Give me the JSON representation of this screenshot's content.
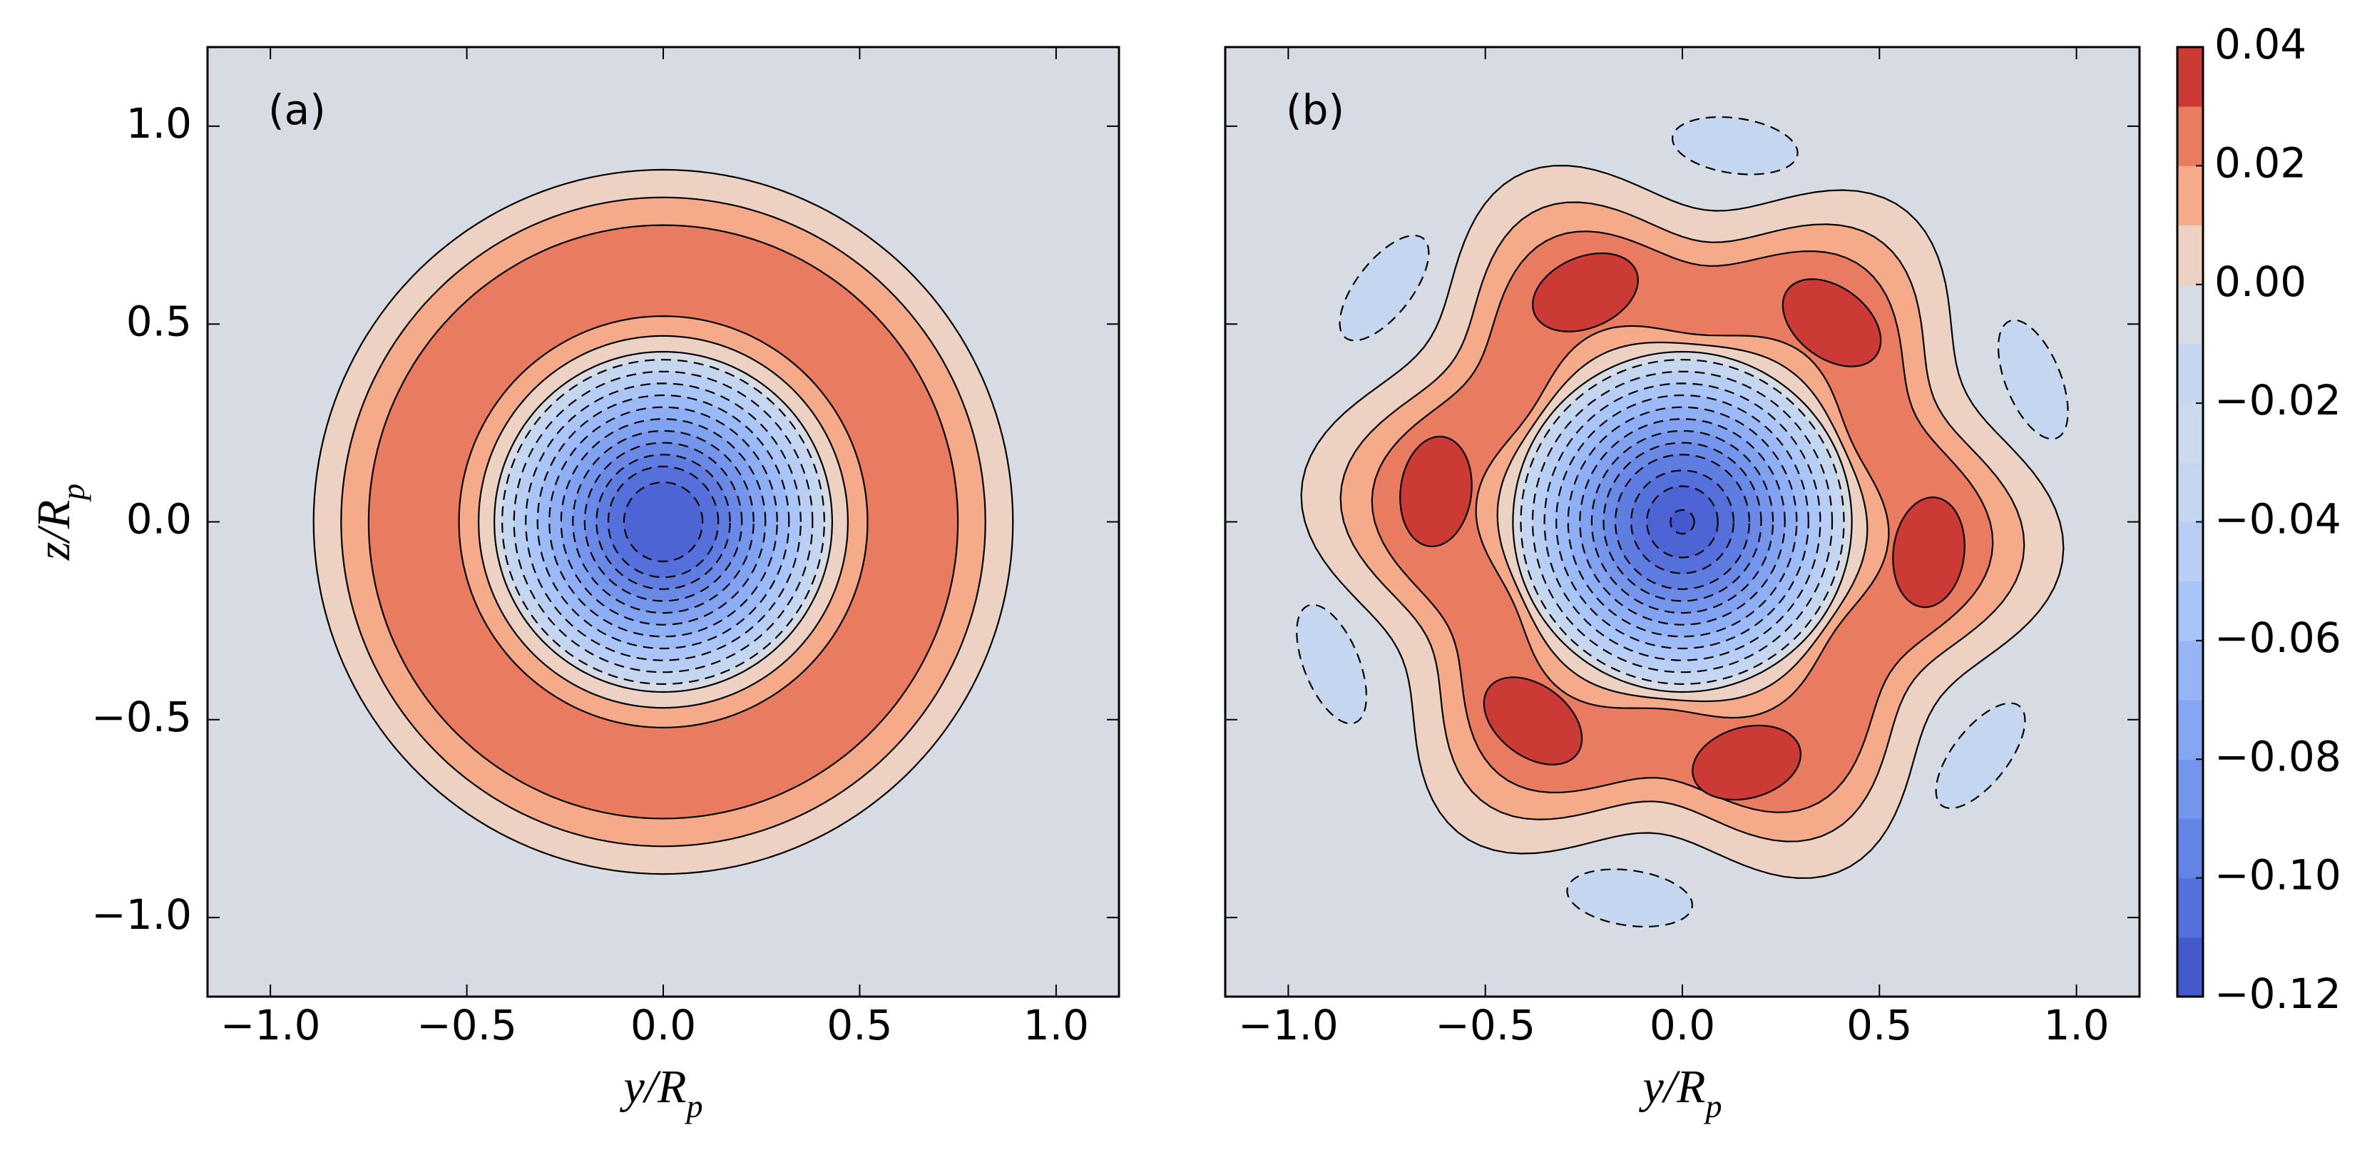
{
  "chart_data": [
    {
      "type": "contour",
      "panel_label": "(a)",
      "xlabel": "y/R_p",
      "ylabel": "z/R_p",
      "xlim": [
        -1.16,
        1.16
      ],
      "ylim": [
        -1.2,
        1.2
      ],
      "xticks": [
        {
          "value": -1.0,
          "label": "−1.0"
        },
        {
          "value": -0.5,
          "label": "−0.5"
        },
        {
          "value": 0.0,
          "label": "0.0"
        },
        {
          "value": 0.5,
          "label": "0.5"
        },
        {
          "value": 1.0,
          "label": "1.0"
        }
      ],
      "yticks": [
        {
          "value": -1.0,
          "label": "−1.0"
        },
        {
          "value": -0.5,
          "label": "−0.5"
        },
        {
          "value": 0.0,
          "label": "0.0"
        },
        {
          "value": 0.5,
          "label": "0.5"
        },
        {
          "value": 1.0,
          "label": "1.0"
        }
      ],
      "background": "#d7dbe3",
      "contours": [
        {
          "level": 0.0,
          "r": 0.89,
          "amp": 0,
          "phase": 0,
          "fill": "#edd1c2"
        },
        {
          "level": 0.01,
          "r": 0.82,
          "amp": 0,
          "phase": 0,
          "fill": "#f5aa89"
        },
        {
          "level": 0.02,
          "r": 0.75,
          "amp": 0,
          "phase": 0,
          "fill": "#e97b61"
        },
        {
          "level": 0.02,
          "r": 0.52,
          "amp": 0,
          "phase": 0,
          "fill": "#f5aa89"
        },
        {
          "level": 0.01,
          "r": 0.47,
          "amp": 0,
          "phase": 0,
          "fill": "#edd1c2"
        },
        {
          "level": 0.0,
          "r": 0.43,
          "amp": 0,
          "phase": 0,
          "fill": "#d7dbe3"
        },
        {
          "level": -0.01,
          "r": 0.41,
          "amp": 0,
          "phase": 0,
          "fill": "#c5d6f0"
        },
        {
          "level": -0.02,
          "r": 0.38,
          "amp": 0,
          "phase": 0,
          "fill": "#b8cef5"
        },
        {
          "level": -0.03,
          "r": 0.35,
          "amp": 0,
          "phase": 0,
          "fill": "#aac5f7"
        },
        {
          "level": -0.04,
          "r": 0.32,
          "amp": 0,
          "phase": 0,
          "fill": "#9cbaf7"
        },
        {
          "level": -0.05,
          "r": 0.29,
          "amp": 0,
          "phase": 0,
          "fill": "#8eaef5"
        },
        {
          "level": -0.06,
          "r": 0.26,
          "amp": 0,
          "phase": 0,
          "fill": "#81a2f1"
        },
        {
          "level": -0.07,
          "r": 0.23,
          "amp": 0,
          "phase": 0,
          "fill": "#7595ec"
        },
        {
          "level": -0.08,
          "r": 0.2,
          "amp": 0,
          "phase": 0,
          "fill": "#6a88e6"
        },
        {
          "level": -0.09,
          "r": 0.17,
          "amp": 0,
          "phase": 0,
          "fill": "#5f7ce0"
        },
        {
          "level": -0.1,
          "r": 0.14,
          "amp": 0,
          "phase": 0,
          "fill": "#5570da"
        },
        {
          "level": -0.11,
          "r": 0.1,
          "amp": 0,
          "phase": 0,
          "fill": "#4c64d4"
        }
      ],
      "blobs": []
    },
    {
      "type": "contour",
      "panel_label": "(b)",
      "xlabel": "y/R_p",
      "xlim": [
        -1.16,
        1.16
      ],
      "ylim": [
        -1.2,
        1.2
      ],
      "xticks": [
        {
          "value": -1.0,
          "label": "−1.0"
        },
        {
          "value": -0.5,
          "label": "−0.5"
        },
        {
          "value": 0.0,
          "label": "0.0"
        },
        {
          "value": 0.5,
          "label": "0.5"
        },
        {
          "value": 1.0,
          "label": "1.0"
        }
      ],
      "yticks": [
        -1.0,
        -0.5,
        0.0,
        0.5,
        1.0
      ],
      "background": "#d7dbe3",
      "contours": [
        {
          "level": 0.0,
          "r": 0.88,
          "amp": 0.09,
          "phase": -5,
          "fill": "#edd1c2"
        },
        {
          "level": 0.01,
          "r": 0.79,
          "amp": 0.08,
          "phase": -5,
          "fill": "#f5aa89"
        },
        {
          "level": 0.02,
          "r": 0.72,
          "amp": 0.07,
          "phase": -5,
          "fill": "#e97b61"
        },
        {
          "level": 0.02,
          "r": 0.5,
          "amp": 0.025,
          "phase": -5,
          "fill": "#f5aa89"
        },
        {
          "level": 0.01,
          "r": 0.46,
          "amp": 0.01,
          "phase": -5,
          "fill": "#edd1c2"
        },
        {
          "level": 0.0,
          "r": 0.43,
          "amp": 0,
          "phase": 0,
          "fill": "#d7dbe3"
        },
        {
          "level": -0.01,
          "r": 0.41,
          "amp": 0,
          "phase": 0,
          "fill": "#c5d6f0"
        },
        {
          "level": -0.02,
          "r": 0.38,
          "amp": 0,
          "phase": 0,
          "fill": "#b8cef5"
        },
        {
          "level": -0.03,
          "r": 0.35,
          "amp": 0,
          "phase": 0,
          "fill": "#aac5f7"
        },
        {
          "level": -0.04,
          "r": 0.32,
          "amp": 0,
          "phase": 0,
          "fill": "#9cbaf7"
        },
        {
          "level": -0.05,
          "r": 0.29,
          "amp": 0,
          "phase": 0,
          "fill": "#8eaef5"
        },
        {
          "level": -0.06,
          "r": 0.26,
          "amp": 0,
          "phase": 0,
          "fill": "#81a2f1"
        },
        {
          "level": -0.07,
          "r": 0.23,
          "amp": 0,
          "phase": 0,
          "fill": "#7595ec"
        },
        {
          "level": -0.08,
          "r": 0.2,
          "amp": 0,
          "phase": 0,
          "fill": "#6a88e6"
        },
        {
          "level": -0.09,
          "r": 0.17,
          "amp": 0,
          "phase": 0,
          "fill": "#5f7ce0"
        },
        {
          "level": -0.1,
          "r": 0.13,
          "amp": 0,
          "phase": 0,
          "fill": "#5570da"
        },
        {
          "level": -0.11,
          "r": 0.09,
          "amp": 0,
          "phase": 0,
          "fill": "#4c64d4"
        },
        {
          "level": -0.12,
          "r": 0.03,
          "amp": 0,
          "phase": 0,
          "fill": "#4459cc"
        }
      ],
      "blobs": [
        {
          "level": 0.03,
          "r": 0.63,
          "angle": -7,
          "w": 0.14,
          "h": 0.09,
          "fill": "#cc3a35"
        },
        {
          "level": 0.03,
          "r": 0.63,
          "angle": 53,
          "w": 0.14,
          "h": 0.09,
          "fill": "#cc3a35"
        },
        {
          "level": 0.03,
          "r": 0.63,
          "angle": 113,
          "w": 0.14,
          "h": 0.09,
          "fill": "#cc3a35"
        },
        {
          "level": 0.03,
          "r": 0.63,
          "angle": 173,
          "w": 0.14,
          "h": 0.09,
          "fill": "#cc3a35"
        },
        {
          "level": 0.03,
          "r": 0.63,
          "angle": 233,
          "w": 0.14,
          "h": 0.09,
          "fill": "#cc3a35"
        },
        {
          "level": 0.03,
          "r": 0.63,
          "angle": 285,
          "w": 0.14,
          "h": 0.09,
          "fill": "#cc3a35"
        },
        {
          "level": -0.01,
          "r": 0.96,
          "angle": 22,
          "w": 0.16,
          "h": 0.07,
          "fill": "#c5d6f0"
        },
        {
          "level": -0.01,
          "r": 0.96,
          "angle": 82,
          "w": 0.16,
          "h": 0.07,
          "fill": "#c5d6f0"
        },
        {
          "level": -0.01,
          "r": 0.96,
          "angle": 142,
          "w": 0.16,
          "h": 0.07,
          "fill": "#c5d6f0"
        },
        {
          "level": -0.01,
          "r": 0.96,
          "angle": 202,
          "w": 0.16,
          "h": 0.07,
          "fill": "#c5d6f0"
        },
        {
          "level": -0.01,
          "r": 0.96,
          "angle": 262,
          "w": 0.16,
          "h": 0.07,
          "fill": "#c5d6f0"
        },
        {
          "level": -0.01,
          "r": 0.96,
          "angle": 322,
          "w": 0.16,
          "h": 0.07,
          "fill": "#c5d6f0"
        }
      ]
    },
    {
      "type": "colorbar",
      "levels": [
        -0.12,
        -0.11,
        -0.1,
        -0.09,
        -0.08,
        -0.07,
        -0.06,
        -0.05,
        -0.04,
        -0.03,
        -0.02,
        -0.01,
        0.0,
        0.01,
        0.02,
        0.03,
        0.04
      ],
      "colors": [
        "#4459cc",
        "#5570da",
        "#6384e4",
        "#7595ec",
        "#86a6f4",
        "#97b5f6",
        "#a8c3f7",
        "#b8cef5",
        "#c5d6f0",
        "#cdd9ec",
        "#c5d6f0",
        "#d7dbe3",
        "#edd1c2",
        "#f5aa89",
        "#e97b61",
        "#cc3a35"
      ],
      "ylim": [
        -0.12,
        0.04
      ],
      "yticks": [
        {
          "value": 0.04,
          "label": "0.04"
        },
        {
          "value": 0.02,
          "label": "0.02"
        },
        {
          "value": 0.0,
          "label": "0.00"
        },
        {
          "value": -0.02,
          "label": "−0.02"
        },
        {
          "value": -0.04,
          "label": "−0.04"
        },
        {
          "value": -0.06,
          "label": "−0.06"
        },
        {
          "value": -0.08,
          "label": "−0.08"
        },
        {
          "value": -0.1,
          "label": "−0.10"
        },
        {
          "value": -0.12,
          "label": "−0.12"
        }
      ]
    }
  ]
}
